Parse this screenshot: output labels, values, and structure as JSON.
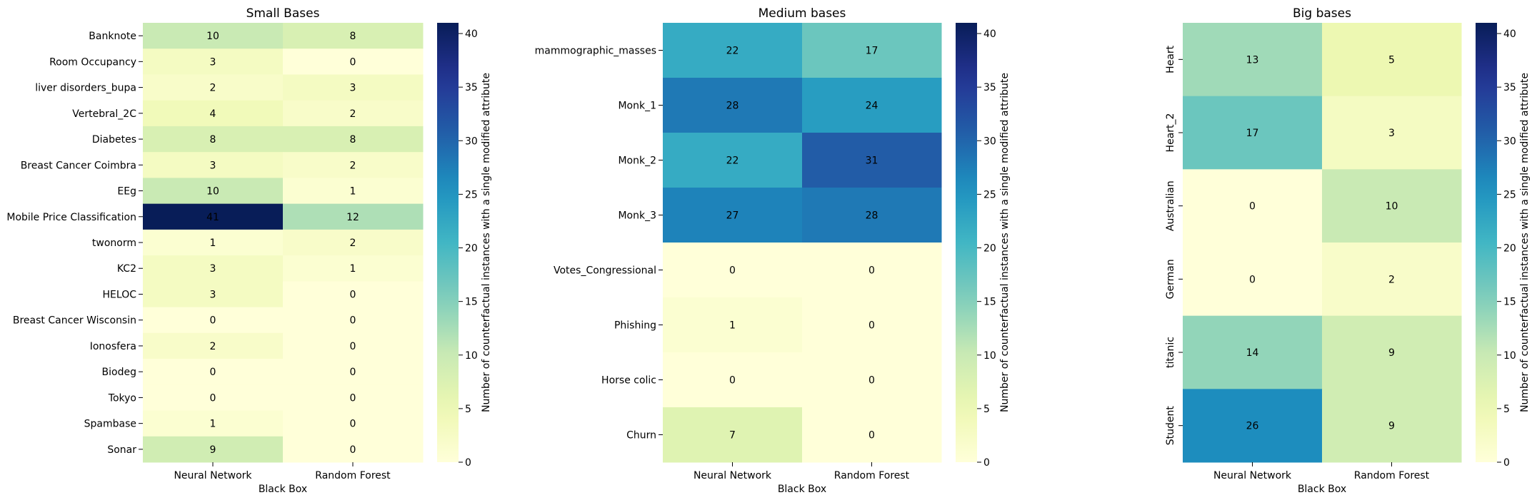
{
  "chart_data": [
    {
      "type": "heatmap",
      "title": "Small Bases",
      "xlabel": "Black Box",
      "ylabel": "",
      "columns": [
        "Neural Network",
        "Random Forest"
      ],
      "rows": [
        "Banknote",
        "Room Occupancy",
        "liver disorders_bupa",
        "Vertebral_2C",
        "Diabetes",
        "Breast Cancer Coimbra",
        "EEg",
        "Mobile Price Classification",
        "twonorm",
        "KC2",
        "HELOC",
        "Breast Cancer Wisconsin",
        "Ionosfera",
        "Biodeg",
        "Tokyo",
        "Spambase",
        "Sonar"
      ],
      "values": [
        [
          10,
          8
        ],
        [
          3,
          0
        ],
        [
          2,
          3
        ],
        [
          4,
          2
        ],
        [
          8,
          8
        ],
        [
          3,
          2
        ],
        [
          10,
          1
        ],
        [
          41,
          12
        ],
        [
          1,
          2
        ],
        [
          3,
          1
        ],
        [
          3,
          0
        ],
        [
          0,
          0
        ],
        [
          2,
          0
        ],
        [
          0,
          0
        ],
        [
          0,
          0
        ],
        [
          1,
          0
        ],
        [
          9,
          0
        ]
      ],
      "row_label_rotation": "horizontal",
      "colorbar": {
        "label": "Number of counterfactual instances with a single modified attribute",
        "ticks": [
          0,
          5,
          10,
          15,
          20,
          25,
          30,
          35,
          40
        ],
        "range": [
          0,
          41
        ],
        "colormap": "YlGnBu"
      }
    },
    {
      "type": "heatmap",
      "title": "Medium bases",
      "xlabel": "Black Box",
      "ylabel": "",
      "columns": [
        "Neural Network",
        "Random Forest"
      ],
      "rows": [
        "mammographic_masses",
        "Monk_1",
        "Monk_2",
        "Monk_3",
        "Votes_Congressional",
        "Phishing",
        "Horse colic",
        "Churn"
      ],
      "values": [
        [
          22,
          17
        ],
        [
          28,
          24
        ],
        [
          22,
          31
        ],
        [
          27,
          28
        ],
        [
          0,
          0
        ],
        [
          1,
          0
        ],
        [
          0,
          0
        ],
        [
          7,
          0
        ]
      ],
      "row_label_rotation": "horizontal",
      "colorbar": {
        "label": "Number of counterfactual instances with a single modified attribute",
        "ticks": [
          0,
          5,
          10,
          15,
          20,
          25,
          30,
          35,
          40
        ],
        "range": [
          0,
          41
        ],
        "colormap": "YlGnBu"
      }
    },
    {
      "type": "heatmap",
      "title": "Big bases",
      "xlabel": "Black Box",
      "ylabel": "",
      "columns": [
        "Neural Network",
        "Random Forest"
      ],
      "rows": [
        "Heart",
        "Heart_2",
        "Australian",
        "German",
        "titanic",
        "Student"
      ],
      "values": [
        [
          13,
          5
        ],
        [
          17,
          3
        ],
        [
          0,
          10
        ],
        [
          0,
          2
        ],
        [
          14,
          9
        ],
        [
          26,
          9
        ]
      ],
      "row_label_rotation": "vertical",
      "colorbar": {
        "label": "Number of counterfactual instances with a single modified attribute",
        "ticks": [
          0,
          5,
          10,
          15,
          20,
          25,
          30,
          35,
          40
        ],
        "range": [
          0,
          41
        ],
        "colormap": "YlGnBu"
      }
    }
  ]
}
